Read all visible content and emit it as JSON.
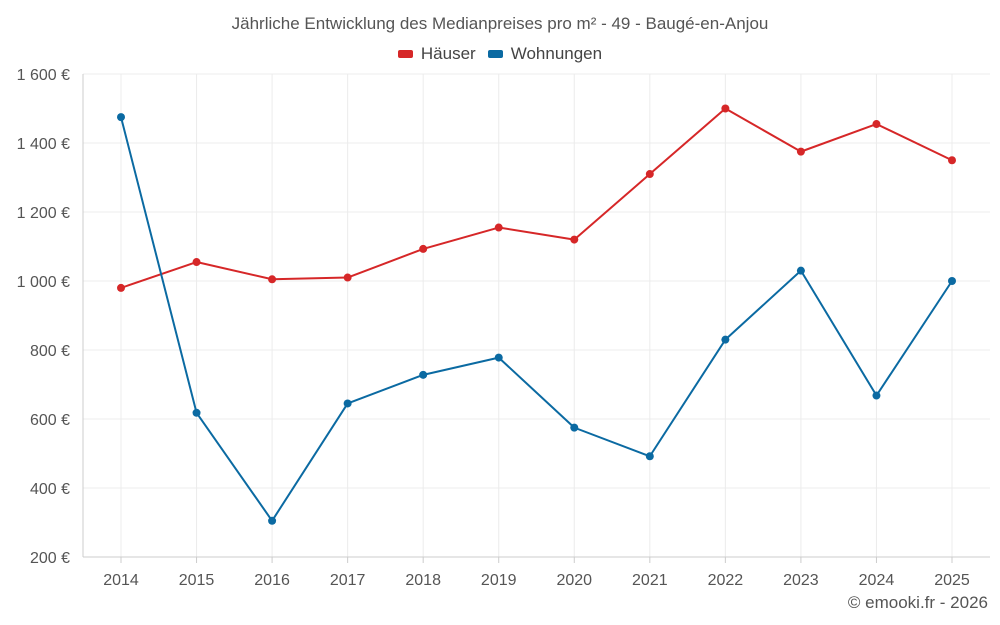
{
  "chart_data": {
    "type": "line",
    "title": "Jährliche Entwicklung des Medianpreises pro m² - 49 - Baugé-en-Anjou",
    "categories": [
      "2014",
      "2015",
      "2016",
      "2017",
      "2018",
      "2019",
      "2020",
      "2021",
      "2022",
      "2023",
      "2024",
      "2025"
    ],
    "series": [
      {
        "name": "Häuser",
        "color": "#d62728",
        "values": [
          980,
          1055,
          1005,
          1010,
          1093,
          1155,
          1120,
          1310,
          1500,
          1375,
          1455,
          1350
        ]
      },
      {
        "name": "Wohnungen",
        "color": "#0b6aa2",
        "values": [
          1475,
          618,
          305,
          645,
          728,
          778,
          575,
          492,
          830,
          1030,
          668,
          1000
        ]
      }
    ],
    "ylim": [
      200,
      1600
    ],
    "yticks": [
      200,
      400,
      600,
      800,
      1000,
      1200,
      1400,
      1600
    ],
    "ytick_labels": [
      "200 €",
      "400 €",
      "600 €",
      "800 €",
      "1 000 €",
      "1 200 €",
      "1 400 €",
      "1 600 €"
    ],
    "xlabel": "",
    "ylabel": "",
    "grid": true,
    "legend_position": "top-center"
  },
  "footer": {
    "copyright": "© emooki.fr - 2026"
  }
}
